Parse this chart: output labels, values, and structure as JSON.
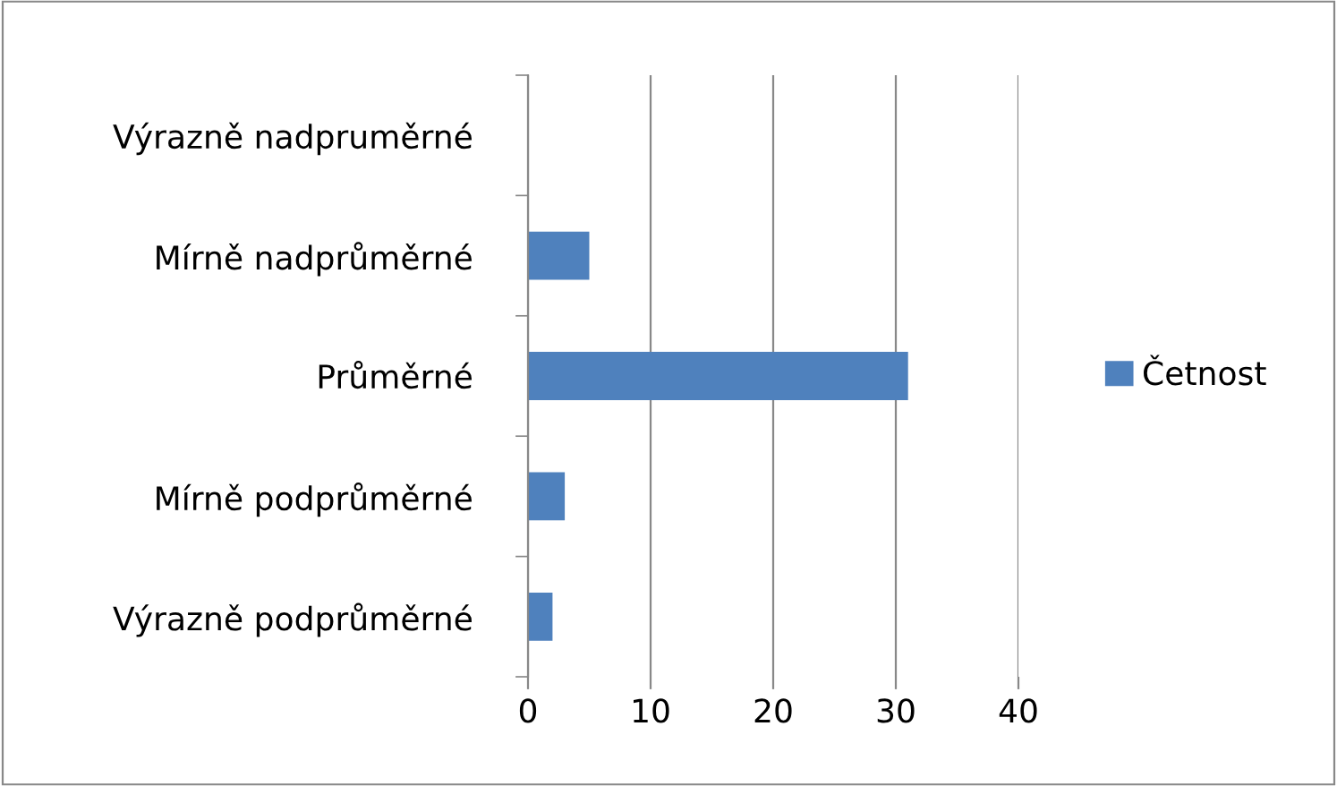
{
  "chart_data": {
    "type": "bar",
    "orientation": "horizontal",
    "categories": [
      "Výrazně nadpruměrné",
      "Mírně nadprůměrné",
      "Průměrné",
      "Mírně podprůměrné",
      "Výrazně podprůměrné"
    ],
    "series": [
      {
        "name": "Četnost",
        "color": "#4f81bd",
        "values": [
          0,
          5,
          31,
          3,
          2
        ]
      }
    ],
    "xlim": [
      0,
      40
    ],
    "xticks": [
      0,
      10,
      20,
      30,
      40
    ],
    "grid": "x",
    "legend": "right"
  }
}
